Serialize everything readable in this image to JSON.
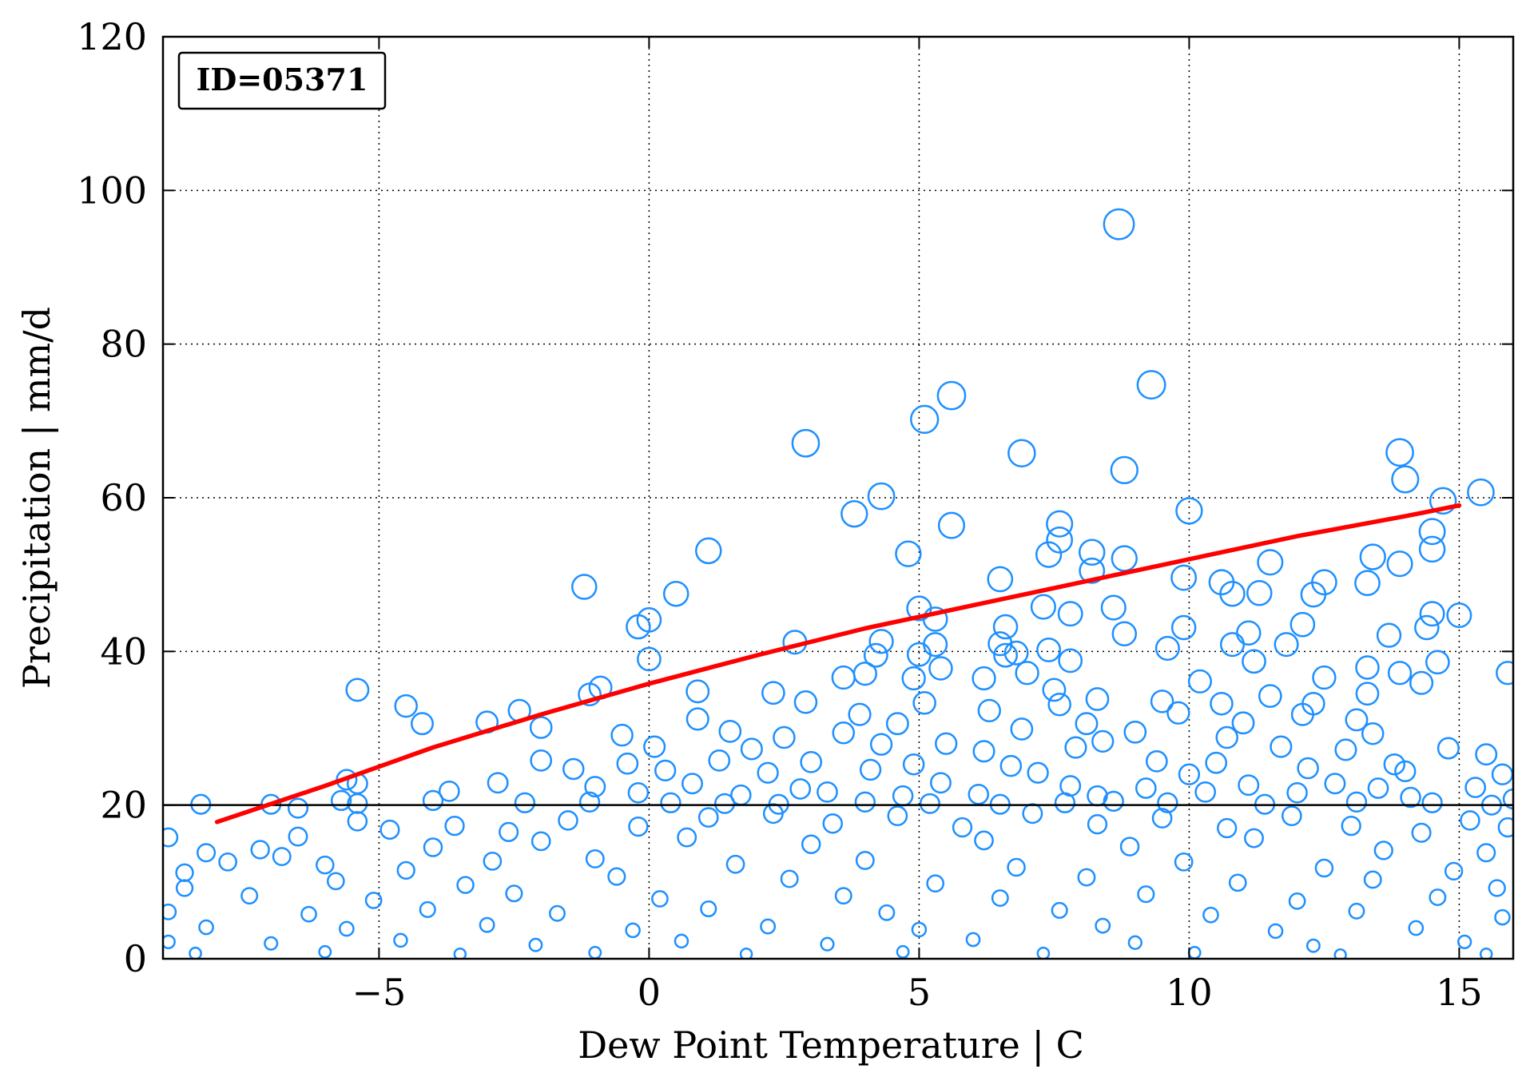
{
  "chart_data": {
    "type": "scatter",
    "annotation": "ID=05371",
    "xlabel": "Dew Point Temperature | C",
    "ylabel": "Precipitation | mm/d",
    "xlim": [
      -9,
      16
    ],
    "ylim": [
      0,
      120
    ],
    "xticks": [
      -5,
      0,
      5,
      10,
      15
    ],
    "xtick_labels": [
      "−5",
      "0",
      "5",
      "10",
      "15"
    ],
    "yticks": [
      0,
      20,
      40,
      60,
      80,
      100,
      120
    ],
    "ytick_labels": [
      "0",
      "20",
      "40",
      "60",
      "80",
      "100",
      "120"
    ],
    "grid": true,
    "reference_line_y": 20,
    "colors": {
      "points": "#1e90ff",
      "curve": "#ff0000",
      "reference": "#000000"
    },
    "curve": {
      "x": [
        -8.0,
        -6.0,
        -4.0,
        -2.0,
        0.0,
        2.0,
        4.0,
        6.0,
        8.0,
        10.0,
        12.0,
        14.0,
        15.0
      ],
      "y": [
        17.8,
        22.5,
        27.5,
        31.8,
        35.8,
        39.5,
        43.0,
        46.0,
        49.0,
        52.0,
        55.0,
        57.6,
        59.0
      ]
    },
    "points": [
      [
        8.7,
        95.6
      ],
      [
        9.3,
        74.7
      ],
      [
        5.6,
        73.3
      ],
      [
        5.1,
        70.2
      ],
      [
        2.9,
        67.1
      ],
      [
        6.9,
        65.8
      ],
      [
        13.9,
        65.9
      ],
      [
        8.8,
        63.6
      ],
      [
        14.0,
        62.4
      ],
      [
        4.3,
        60.2
      ],
      [
        15.4,
        60.7
      ],
      [
        14.7,
        59.6
      ],
      [
        10.0,
        58.3
      ],
      [
        3.8,
        57.9
      ],
      [
        7.6,
        56.6
      ],
      [
        5.6,
        56.4
      ],
      [
        14.5,
        55.6
      ],
      [
        7.6,
        54.5
      ],
      [
        14.5,
        53.3
      ],
      [
        1.1,
        53.1
      ],
      [
        8.2,
        52.9
      ],
      [
        4.8,
        52.7
      ],
      [
        7.4,
        52.6
      ],
      [
        8.8,
        52.1
      ],
      [
        13.4,
        52.3
      ],
      [
        13.9,
        51.4
      ],
      [
        11.5,
        51.6
      ],
      [
        8.2,
        50.5
      ],
      [
        9.9,
        49.6
      ],
      [
        6.5,
        49.4
      ],
      [
        12.5,
        49.0
      ],
      [
        10.6,
        49.0
      ],
      [
        13.3,
        48.9
      ],
      [
        -1.2,
        48.4
      ],
      [
        0.5,
        47.5
      ],
      [
        10.8,
        47.5
      ],
      [
        11.3,
        47.6
      ],
      [
        12.3,
        47.4
      ],
      [
        5.0,
        45.6
      ],
      [
        7.3,
        45.8
      ],
      [
        8.6,
        45.7
      ],
      [
        7.8,
        44.9
      ],
      [
        14.5,
        44.9
      ],
      [
        15.0,
        44.7
      ],
      [
        5.3,
        44.2
      ],
      [
        0.0,
        44.1
      ],
      [
        -0.2,
        43.2
      ],
      [
        9.9,
        43.1
      ],
      [
        14.4,
        43.1
      ],
      [
        12.1,
        43.5
      ],
      [
        6.6,
        43.2
      ],
      [
        13.7,
        42.1
      ],
      [
        8.8,
        42.3
      ],
      [
        11.1,
        42.4
      ],
      [
        2.7,
        41.2
      ],
      [
        4.3,
        41.3
      ],
      [
        6.5,
        41.0
      ],
      [
        10.8,
        40.9
      ],
      [
        11.8,
        40.9
      ],
      [
        5.3,
        40.9
      ],
      [
        7.4,
        40.2
      ],
      [
        9.6,
        40.4
      ],
      [
        6.8,
        39.8
      ],
      [
        4.2,
        39.5
      ],
      [
        5.0,
        39.6
      ],
      [
        6.6,
        39.5
      ],
      [
        0.0,
        39.0
      ],
      [
        7.8,
        38.8
      ],
      [
        11.2,
        38.7
      ],
      [
        14.6,
        38.6
      ],
      [
        13.3,
        37.9
      ],
      [
        5.4,
        37.8
      ],
      [
        4.0,
        37.1
      ],
      [
        7.0,
        37.2
      ],
      [
        13.9,
        37.2
      ],
      [
        15.9,
        37.2
      ],
      [
        3.6,
        36.6
      ],
      [
        10.2,
        36.1
      ],
      [
        4.9,
        36.5
      ],
      [
        6.2,
        36.5
      ],
      [
        12.5,
        36.6
      ],
      [
        14.3,
        35.9
      ],
      [
        -5.4,
        35.0
      ],
      [
        -0.9,
        35.3
      ],
      [
        0.9,
        34.8
      ],
      [
        2.3,
        34.6
      ],
      [
        7.5,
        35.0
      ],
      [
        13.3,
        34.5
      ],
      [
        -1.1,
        34.4
      ],
      [
        11.5,
        34.2
      ],
      [
        8.3,
        33.8
      ],
      [
        9.5,
        33.5
      ],
      [
        10.6,
        33.2
      ],
      [
        -4.5,
        32.9
      ],
      [
        2.9,
        33.4
      ],
      [
        7.6,
        33.1
      ],
      [
        12.3,
        33.2
      ],
      [
        5.1,
        33.3
      ],
      [
        -2.4,
        32.3
      ],
      [
        3.9,
        31.8
      ],
      [
        6.3,
        32.3
      ],
      [
        9.8,
        32.0
      ],
      [
        12.1,
        31.8
      ],
      [
        -3.0,
        30.8
      ],
      [
        0.9,
        31.2
      ],
      [
        4.6,
        30.6
      ],
      [
        8.1,
        30.6
      ],
      [
        11.0,
        30.7
      ],
      [
        13.1,
        31.1
      ],
      [
        -4.2,
        30.6
      ],
      [
        -2.0,
        30.1
      ],
      [
        1.5,
        29.6
      ],
      [
        3.6,
        29.4
      ],
      [
        6.9,
        29.9
      ],
      [
        9.0,
        29.5
      ],
      [
        13.4,
        29.3
      ],
      [
        -0.5,
        29.1
      ],
      [
        2.5,
        28.8
      ],
      [
        5.5,
        28.0
      ],
      [
        8.4,
        28.3
      ],
      [
        10.7,
        28.8
      ],
      [
        14.8,
        27.4
      ],
      [
        0.1,
        27.6
      ],
      [
        1.9,
        27.3
      ],
      [
        4.3,
        27.9
      ],
      [
        6.2,
        27.0
      ],
      [
        7.9,
        27.5
      ],
      [
        11.7,
        27.6
      ],
      [
        12.9,
        27.2
      ],
      [
        15.5,
        26.6
      ],
      [
        -2.0,
        25.8
      ],
      [
        -0.4,
        25.4
      ],
      [
        1.3,
        25.8
      ],
      [
        3.0,
        25.6
      ],
      [
        4.9,
        25.3
      ],
      [
        6.7,
        25.1
      ],
      [
        9.4,
        25.7
      ],
      [
        10.5,
        25.5
      ],
      [
        13.8,
        25.3
      ],
      [
        -1.4,
        24.7
      ],
      [
        0.3,
        24.5
      ],
      [
        2.2,
        24.2
      ],
      [
        4.1,
        24.6
      ],
      [
        7.2,
        24.2
      ],
      [
        10.0,
        24.0
      ],
      [
        12.2,
        24.8
      ],
      [
        14.0,
        24.4
      ],
      [
        15.8,
        24.0
      ],
      [
        -5.6,
        23.3
      ],
      [
        -2.8,
        22.9
      ],
      [
        -1.0,
        22.4
      ],
      [
        0.8,
        22.8
      ],
      [
        2.8,
        22.1
      ],
      [
        5.4,
        22.9
      ],
      [
        7.8,
        22.5
      ],
      [
        9.2,
        22.2
      ],
      [
        11.1,
        22.6
      ],
      [
        12.7,
        22.8
      ],
      [
        13.5,
        22.2
      ],
      [
        15.3,
        22.3
      ],
      [
        -5.4,
        22.8
      ],
      [
        -3.7,
        21.8
      ],
      [
        -0.2,
        21.6
      ],
      [
        1.7,
        21.3
      ],
      [
        3.3,
        21.7
      ],
      [
        4.7,
        21.2
      ],
      [
        6.1,
        21.4
      ],
      [
        8.3,
        21.2
      ],
      [
        10.3,
        21.7
      ],
      [
        12.0,
        21.6
      ],
      [
        14.1,
        21.0
      ],
      [
        16.0,
        20.8
      ],
      [
        -8.3,
        20.1
      ],
      [
        -7.0,
        20.1
      ],
      [
        -6.5,
        19.6
      ],
      [
        -5.7,
        20.6
      ],
      [
        -5.4,
        20.2
      ],
      [
        -4.0,
        20.6
      ],
      [
        -2.3,
        20.3
      ],
      [
        -1.1,
        20.4
      ],
      [
        0.4,
        20.3
      ],
      [
        1.4,
        20.2
      ],
      [
        2.4,
        20.1
      ],
      [
        4.0,
        20.4
      ],
      [
        5.2,
        20.2
      ],
      [
        6.5,
        20.1
      ],
      [
        7.7,
        20.3
      ],
      [
        8.6,
        20.5
      ],
      [
        9.6,
        20.3
      ],
      [
        11.4,
        20.1
      ],
      [
        13.1,
        20.4
      ],
      [
        14.5,
        20.3
      ],
      [
        15.6,
        20.0
      ],
      [
        -5.4,
        17.9
      ],
      [
        -4.8,
        16.8
      ],
      [
        -3.6,
        17.3
      ],
      [
        -2.6,
        16.5
      ],
      [
        -1.5,
        18.0
      ],
      [
        -0.2,
        17.2
      ],
      [
        1.1,
        18.4
      ],
      [
        2.3,
        18.9
      ],
      [
        3.4,
        17.6
      ],
      [
        4.6,
        18.6
      ],
      [
        5.8,
        17.1
      ],
      [
        7.1,
        18.9
      ],
      [
        8.3,
        17.5
      ],
      [
        9.5,
        18.3
      ],
      [
        10.7,
        17.0
      ],
      [
        11.9,
        18.6
      ],
      [
        13.0,
        17.3
      ],
      [
        14.3,
        16.4
      ],
      [
        15.2,
        18.0
      ],
      [
        15.9,
        17.1
      ],
      [
        -6.5,
        15.9
      ],
      [
        -7.2,
        14.2
      ],
      [
        -8.2,
        13.8
      ],
      [
        -8.6,
        11.2
      ],
      [
        -8.9,
        15.8
      ],
      [
        -7.8,
        12.6
      ],
      [
        -6.8,
        13.3
      ],
      [
        -6.0,
        12.2
      ],
      [
        -4.0,
        14.5
      ],
      [
        -2.0,
        15.3
      ],
      [
        0.7,
        15.8
      ],
      [
        3.0,
        14.9
      ],
      [
        6.2,
        15.4
      ],
      [
        8.9,
        14.6
      ],
      [
        11.2,
        15.7
      ],
      [
        13.6,
        14.1
      ],
      [
        15.5,
        13.8
      ],
      [
        -4.5,
        11.5
      ],
      [
        -2.9,
        12.7
      ],
      [
        -1.0,
        13.0
      ],
      [
        1.6,
        12.3
      ],
      [
        4.0,
        12.8
      ],
      [
        6.8,
        11.9
      ],
      [
        9.9,
        12.6
      ],
      [
        12.5,
        11.8
      ],
      [
        14.9,
        11.4
      ],
      [
        -5.8,
        10.1
      ],
      [
        -3.4,
        9.6
      ],
      [
        -0.6,
        10.7
      ],
      [
        2.6,
        10.4
      ],
      [
        5.3,
        9.8
      ],
      [
        8.1,
        10.6
      ],
      [
        10.9,
        9.9
      ],
      [
        13.4,
        10.3
      ],
      [
        15.7,
        9.2
      ],
      [
        -8.6,
        9.2
      ],
      [
        -7.4,
        8.2
      ],
      [
        -5.1,
        7.6
      ],
      [
        -2.5,
        8.5
      ],
      [
        0.2,
        7.8
      ],
      [
        3.6,
        8.2
      ],
      [
        6.5,
        7.9
      ],
      [
        9.2,
        8.4
      ],
      [
        12.0,
        7.5
      ],
      [
        14.6,
        8.0
      ],
      [
        -8.9,
        6.1
      ],
      [
        -6.3,
        5.8
      ],
      [
        -4.1,
        6.4
      ],
      [
        -1.7,
        5.9
      ],
      [
        1.1,
        6.5
      ],
      [
        4.4,
        6.0
      ],
      [
        7.6,
        6.3
      ],
      [
        10.4,
        5.7
      ],
      [
        13.1,
        6.2
      ],
      [
        15.8,
        5.4
      ],
      [
        -8.2,
        4.1
      ],
      [
        -5.6,
        3.9
      ],
      [
        -3.0,
        4.4
      ],
      [
        -0.3,
        3.7
      ],
      [
        2.2,
        4.2
      ],
      [
        5.0,
        3.8
      ],
      [
        8.4,
        4.3
      ],
      [
        11.6,
        3.6
      ],
      [
        14.2,
        4.0
      ],
      [
        -8.9,
        2.2
      ],
      [
        -7.0,
        2.0
      ],
      [
        -4.6,
        2.4
      ],
      [
        -2.1,
        1.8
      ],
      [
        0.6,
        2.3
      ],
      [
        3.3,
        1.9
      ],
      [
        6.0,
        2.5
      ],
      [
        9.0,
        2.1
      ],
      [
        12.3,
        1.7
      ],
      [
        15.1,
        2.2
      ],
      [
        -8.4,
        0.7
      ],
      [
        -6.0,
        0.9
      ],
      [
        -3.5,
        0.6
      ],
      [
        -1.0,
        0.8
      ],
      [
        1.8,
        0.6
      ],
      [
        4.7,
        0.9
      ],
      [
        7.3,
        0.7
      ],
      [
        10.1,
        0.8
      ],
      [
        12.8,
        0.5
      ],
      [
        15.5,
        0.6
      ]
    ]
  }
}
